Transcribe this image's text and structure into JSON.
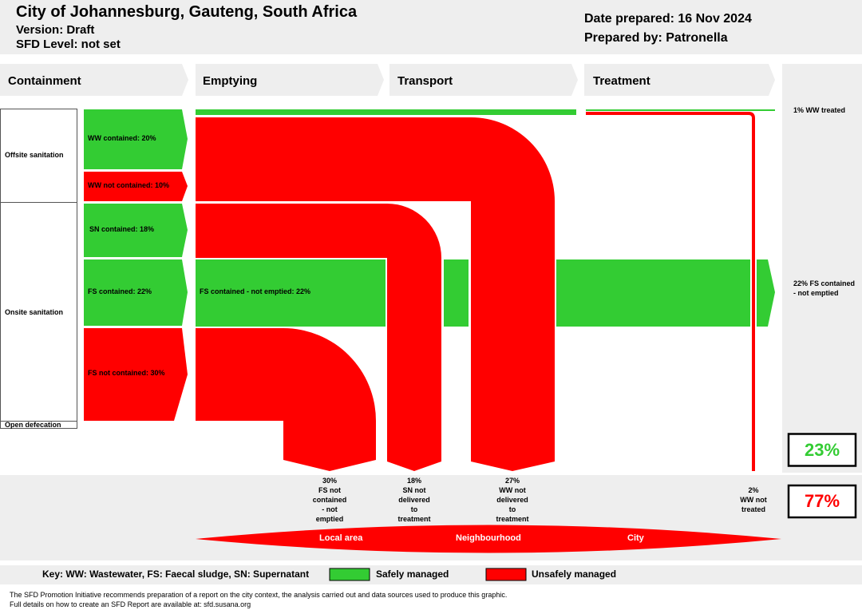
{
  "header": {
    "title": "City of Johannesburg, Gauteng, South Africa",
    "version": "Version: Draft",
    "sfd_level": "SFD Level: not set",
    "date_prepared": "Date prepared: 16 Nov 2024",
    "prepared_by": "Prepared by: Patronella"
  },
  "stages": {
    "containment": "Containment",
    "emptying": "Emptying",
    "transport": "Transport",
    "treatment": "Treatment"
  },
  "categories": {
    "offsite": "Offsite sanitation",
    "onsite": "Onsite sanitation",
    "open_defecation": "Open defecation"
  },
  "containment": {
    "ww_contained": "WW contained: 20%",
    "ww_not_contained": "WW not contained: 10%",
    "sn_contained": "SN contained: 18%",
    "fs_contained": "FS contained: 22%",
    "fs_not_contained": "FS not contained: 30%"
  },
  "flows": {
    "fs_contained_not_emptied": "FS contained - not emptied: 22%"
  },
  "outcomes_right": {
    "ww_treated": "1% WW treated",
    "fs_not_emptied": "22% FS contained - not emptied"
  },
  "losses": {
    "fs_not_contained": {
      "pct": "30%",
      "l1": "FS not",
      "l2": "contained",
      "l3": "- not",
      "l4": "emptied"
    },
    "sn_not_delivered": {
      "pct": "18%",
      "l1": "SN not",
      "l2": "delivered",
      "l3": "to",
      "l4": "treatment"
    },
    "ww_not_delivered": {
      "pct": "27%",
      "l1": "WW not",
      "l2": "delivered",
      "l3": "to",
      "l4": "treatment"
    },
    "ww_not_treated": {
      "pct": "2%",
      "l1": "WW not",
      "l2": "treated"
    }
  },
  "totals": {
    "safe_pct": "23%",
    "unsafe_pct": "77%"
  },
  "scale": {
    "local": "Local area",
    "neighbourhood": "Neighbourhood",
    "city": "City"
  },
  "legend": {
    "key": "Key: WW: Wastewater, FS: Faecal sludge, SN: Supernatant",
    "safe": "Safely managed",
    "unsafe": "Unsafely managed"
  },
  "footer": {
    "line1": "The SFD Promotion Initiative recommends preparation of a report on the city context, the analysis carried out and data sources used to produce this graphic.",
    "line2": "Full details on how to create an SFD Report are available at: sfd.susana.org"
  },
  "colors": {
    "safe": "#33cc33",
    "unsafe": "#ff0000",
    "panel": "#eeeeee"
  }
}
